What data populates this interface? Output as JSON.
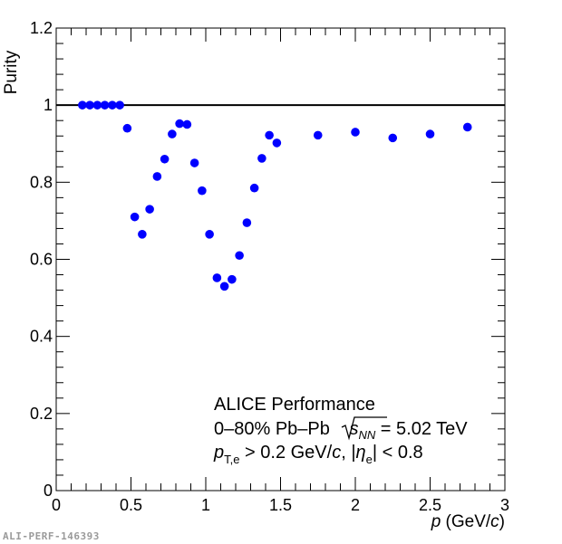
{
  "chart_data": {
    "type": "scatter",
    "xlabel_prefix": "p",
    "xlabel_unit": " (GeV/",
    "xlabel_unit_c": "c",
    "xlabel_close": ")",
    "ylabel": "Purity",
    "xlim": [
      0,
      3
    ],
    "ylim": [
      0,
      1.2
    ],
    "xticks": [
      "0",
      "0.5",
      "1",
      "1.5",
      "2",
      "2.5",
      "3"
    ],
    "yticks": [
      "0",
      "0.2",
      "0.4",
      "0.6",
      "0.8",
      "1",
      "1.2"
    ],
    "reference_line_y": 1,
    "marker_color": "#0000ff",
    "series": [
      {
        "x": [
          0.175,
          0.225,
          0.275,
          0.325,
          0.375,
          0.425,
          0.475,
          0.525,
          0.575,
          0.625,
          0.675,
          0.725,
          0.775,
          0.825,
          0.875,
          0.925,
          0.975,
          1.025,
          1.075,
          1.125,
          1.175,
          1.225,
          1.275,
          1.325,
          1.375,
          1.425,
          1.475,
          1.75,
          2.0,
          2.25,
          2.5,
          2.75
        ],
        "y": [
          1.0,
          1.0,
          1.0,
          1.0,
          1.0,
          1.0,
          0.94,
          0.71,
          0.665,
          0.73,
          0.815,
          0.86,
          0.925,
          0.952,
          0.95,
          0.85,
          0.778,
          0.665,
          0.552,
          0.53,
          0.548,
          0.61,
          0.695,
          0.785,
          0.862,
          0.922,
          0.902,
          0.922,
          0.93,
          0.915,
          0.925,
          0.943
        ]
      }
    ],
    "annotations": {
      "line1": "ALICE Performance",
      "line2_pre": "0–80% Pb–Pb ",
      "line2_s": "s",
      "line2_sub": "NN",
      "line2_post": " = 5.02 TeV",
      "line3_p": "p",
      "line3_sub": "T,e",
      "line3_mid": " > 0.2 GeV/",
      "line3_c": "c",
      "line3_sep": ", |",
      "line3_eta": "η",
      "line3_eta_sub": "e",
      "line3_end": "| < 0.8"
    }
  },
  "watermark": "ALI-PERF-146393"
}
